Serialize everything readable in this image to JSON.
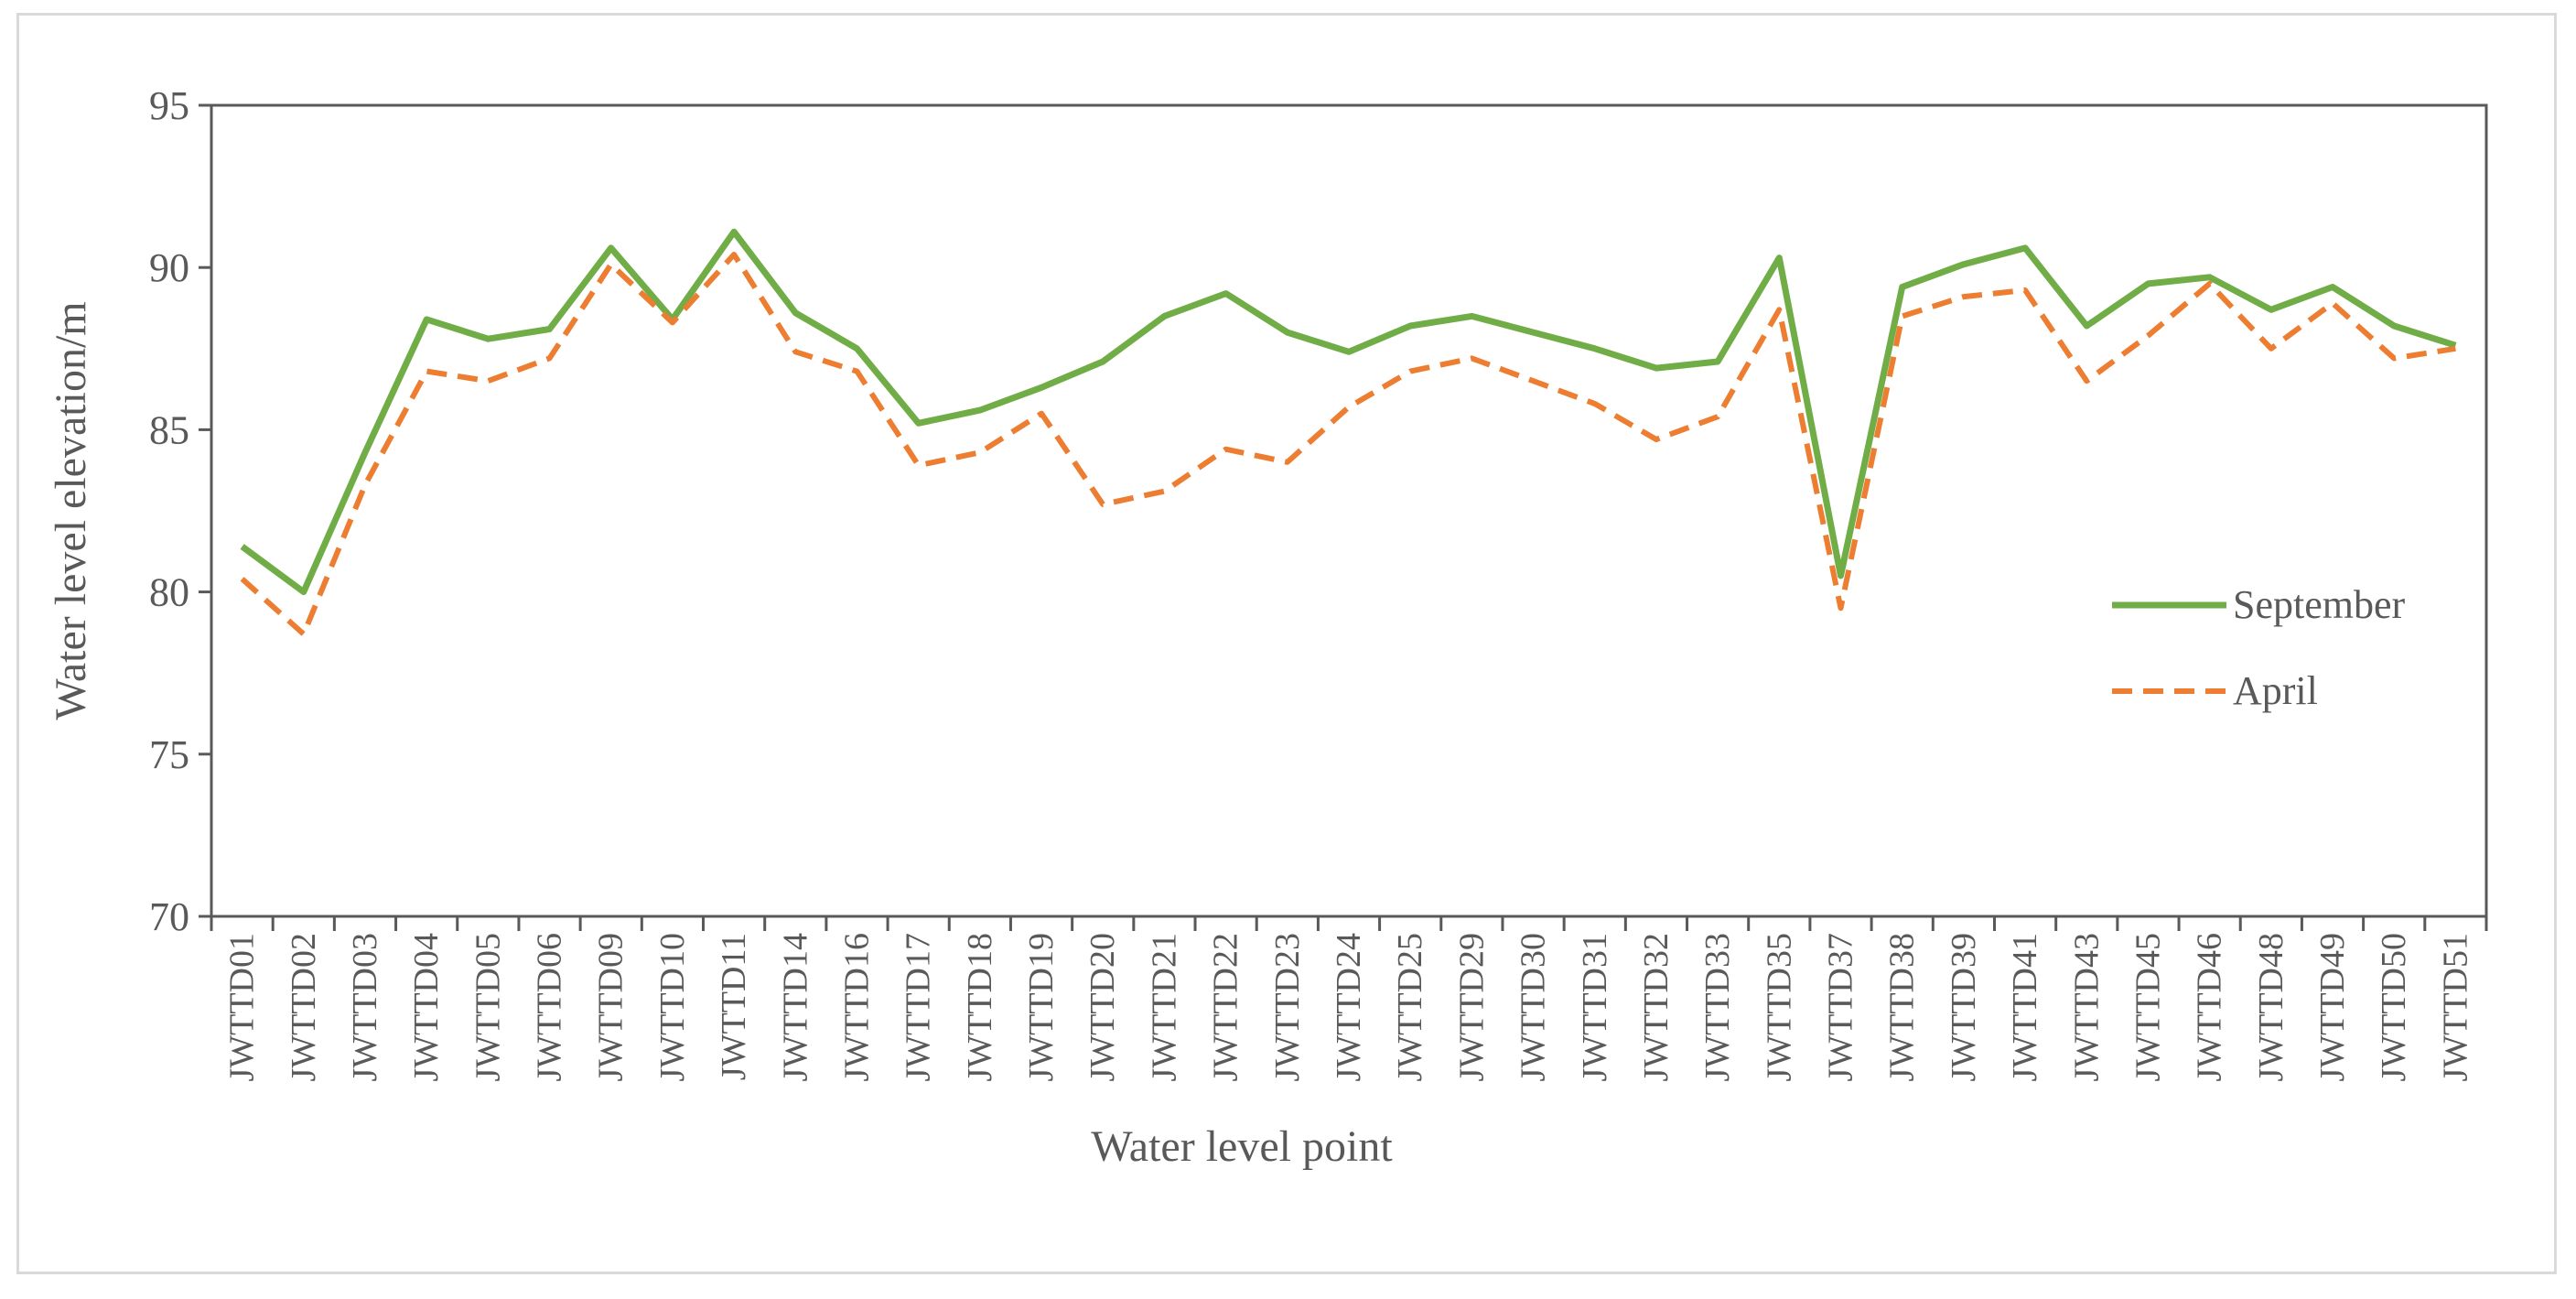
{
  "chart_data": {
    "type": "line",
    "title": "",
    "xlabel": "Water level point",
    "ylabel": "Water level elevation/m",
    "ylim": [
      70,
      95
    ],
    "yticks": [
      70,
      75,
      80,
      85,
      90,
      95
    ],
    "grid": false,
    "legend_position": "right",
    "categories": [
      "JWTTD01",
      "JWTTD02",
      "JWTTD03",
      "JWTTD04",
      "JWTTD05",
      "JWTTD06",
      "JWTTD09",
      "JWTTD10",
      "JWTTD11",
      "JWTTD14",
      "JWTTD16",
      "JWTTD17",
      "JWTTD18",
      "JWTTD19",
      "JWTTD20",
      "JWTTD21",
      "JWTTD22",
      "JWTTD23",
      "JWTTD24",
      "JWTTD25",
      "JWTTD29",
      "JWTTD30",
      "JWTTD31",
      "JWTTD32",
      "JWTTD33",
      "JWTTD35",
      "JWTTD37",
      "JWTTD38",
      "JWTTD39",
      "JWTTD41",
      "JWTTD43",
      "JWTTD45",
      "JWTTD46",
      "JWTTD48",
      "JWTTD49",
      "JWTTD50",
      "JWTTD51"
    ],
    "series": [
      {
        "name": "September",
        "color": "#70AD47",
        "style": "solid",
        "values": [
          81.4,
          80.0,
          84.3,
          88.4,
          87.8,
          88.1,
          90.6,
          88.4,
          91.1,
          88.6,
          87.5,
          85.2,
          85.6,
          86.3,
          87.1,
          88.5,
          89.2,
          88.0,
          87.4,
          88.2,
          88.5,
          88.0,
          87.5,
          86.9,
          87.1,
          90.3,
          80.5,
          89.4,
          90.1,
          90.6,
          88.2,
          89.5,
          89.7,
          88.7,
          89.4,
          88.2,
          87.6
        ]
      },
      {
        "name": "April",
        "color": "#ED7D31",
        "style": "dashed",
        "values": [
          80.4,
          78.7,
          83.3,
          86.8,
          86.5,
          87.2,
          90.1,
          88.3,
          90.4,
          87.4,
          86.8,
          83.9,
          84.3,
          85.5,
          82.7,
          83.1,
          84.4,
          84.0,
          85.7,
          86.8,
          87.2,
          86.5,
          85.8,
          84.7,
          85.4,
          88.7,
          79.5,
          88.5,
          89.1,
          89.3,
          86.5,
          87.9,
          89.5,
          87.5,
          88.9,
          87.2,
          87.5
        ]
      }
    ]
  }
}
